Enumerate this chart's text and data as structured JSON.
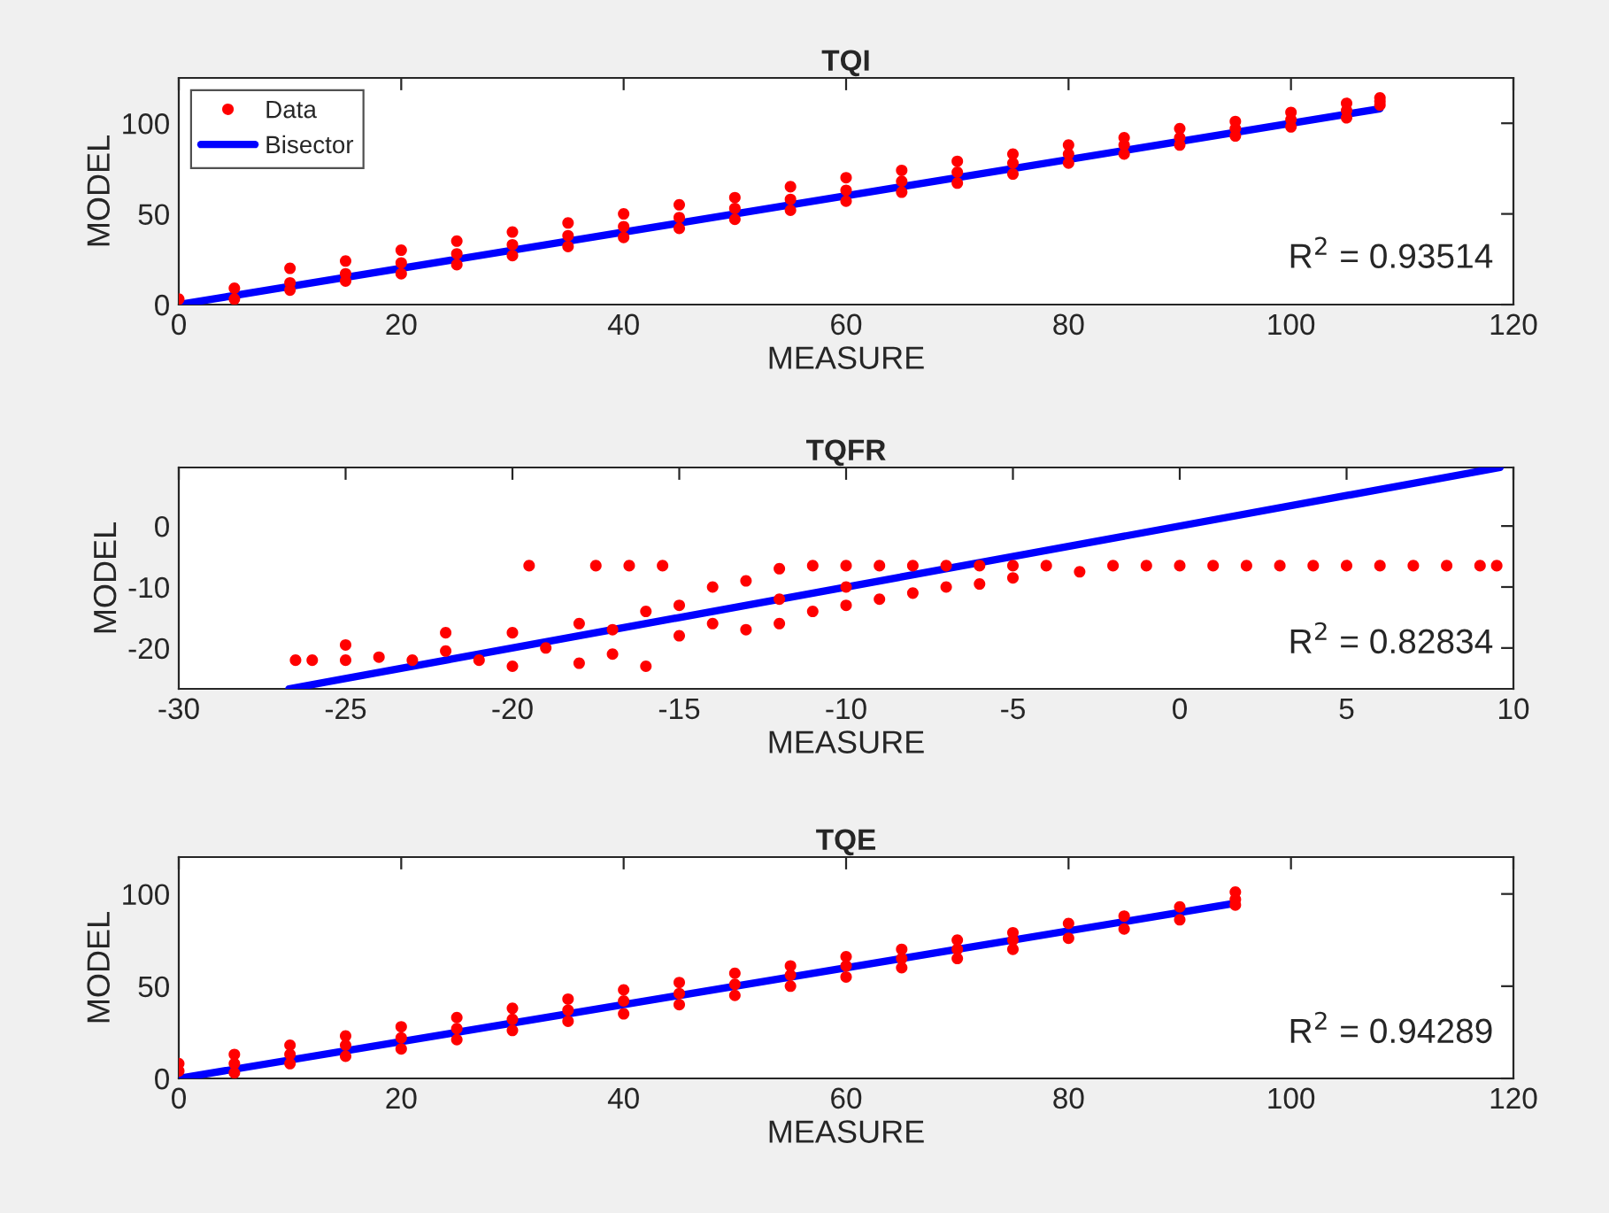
{
  "chart_data": [
    {
      "type": "scatter",
      "title": "TQI",
      "xlabel": "MEASURE",
      "ylabel": "MODEL",
      "xlim": [
        0,
        120
      ],
      "ylim": [
        0,
        125
      ],
      "xticks": [
        0,
        20,
        40,
        60,
        80,
        100,
        120
      ],
      "yticks": [
        0,
        50,
        100
      ],
      "legend": "top left",
      "annotations": [
        "R$^{2}$ = 0.93514"
      ],
      "series": [
        {
          "name": "Data",
          "marker": "circle",
          "color": "#ff0000",
          "x": [
            0,
            5,
            10,
            15,
            20,
            25,
            30,
            35,
            40,
            45,
            50,
            55,
            60,
            65,
            70,
            75,
            80,
            85,
            90,
            95,
            100,
            105,
            108,
            10,
            15,
            20,
            25,
            30,
            35,
            40,
            45,
            50,
            55,
            60,
            65,
            70,
            75,
            80,
            85,
            90,
            95,
            100,
            105,
            108,
            5,
            10,
            15,
            20,
            25,
            30,
            35,
            40,
            45,
            50,
            55,
            60,
            65,
            70,
            75,
            80,
            85,
            90,
            95,
            100,
            105,
            108
          ],
          "values": [
            3,
            9,
            20,
            24,
            30,
            35,
            40,
            45,
            50,
            55,
            59,
            65,
            70,
            74,
            79,
            83,
            88,
            92,
            97,
            101,
            106,
            111,
            114,
            12,
            17,
            23,
            28,
            33,
            38,
            43,
            48,
            53,
            58,
            63,
            68,
            73,
            78,
            83,
            88,
            92,
            97,
            102,
            107,
            112,
            3,
            8,
            13,
            17,
            22,
            27,
            32,
            37,
            42,
            47,
            52,
            57,
            62,
            67,
            72,
            78,
            83,
            88,
            93,
            98,
            103,
            110
          ]
        },
        {
          "name": "Bisector",
          "type": "line",
          "marker": "none",
          "color": "#0000ff",
          "x": [
            0,
            108
          ],
          "values": [
            0,
            108
          ]
        }
      ]
    },
    {
      "type": "scatter",
      "title": "TQFR",
      "xlabel": "MEASURE",
      "ylabel": "MODEL",
      "xlim": [
        -30,
        10
      ],
      "ylim": [
        -26.7,
        9.6
      ],
      "xticks": [
        -30,
        -25,
        -20,
        -15,
        -10,
        -5,
        0,
        5,
        10
      ],
      "yticks": [
        -20,
        -10,
        0
      ],
      "annotations": [
        "R$^{2}$ = 0.82834"
      ],
      "series": [
        {
          "marker": "circle",
          "color": "#ff0000",
          "x": [
            -26.5,
            -26,
            -25,
            -25,
            -24,
            -23,
            -22,
            -22,
            -21,
            -20,
            -20,
            -19.5,
            -19,
            -18,
            -18,
            -17.5,
            -17,
            -17,
            -16.5,
            -16,
            -16,
            -15.5,
            -15,
            -15,
            -14,
            -14,
            -13,
            -13,
            -12,
            -12,
            -12,
            -11,
            -11,
            -10,
            -10,
            -10,
            -9,
            -9,
            -8,
            -8,
            -7,
            -7,
            -6,
            -6,
            -5,
            -5,
            -4,
            -3,
            -2,
            -1,
            0,
            1,
            2,
            3,
            4,
            5,
            6,
            7,
            8,
            9,
            9.5
          ],
          "values": [
            -22,
            -22,
            -22,
            -19.5,
            -21.5,
            -22,
            -20.5,
            -17.5,
            -22,
            -17.5,
            -23,
            -6.5,
            -20,
            -16,
            -22.5,
            -6.5,
            -17,
            -21,
            -6.5,
            -14,
            -23,
            -6.5,
            -13,
            -18,
            -10,
            -16,
            -9,
            -17,
            -7,
            -12,
            -16,
            -6.5,
            -14,
            -6.5,
            -10,
            -13,
            -6.5,
            -12,
            -6.5,
            -11,
            -6.5,
            -10,
            -6.5,
            -9.5,
            -6.5,
            -8.5,
            -6.5,
            -7.5,
            -6.5,
            -6.5,
            -6.5,
            -6.5,
            -6.5,
            -6.5,
            -6.5,
            -6.5,
            -6.5,
            -6.5,
            -6.5,
            -6.5,
            -6.5
          ]
        },
        {
          "type": "line",
          "marker": "none",
          "color": "#0000ff",
          "x": [
            -26.7,
            9.6
          ],
          "values": [
            -26.7,
            9.6
          ]
        }
      ]
    },
    {
      "type": "scatter",
      "title": "TQE",
      "xlabel": "MEASURE",
      "ylabel": "MODEL",
      "xlim": [
        0,
        120
      ],
      "ylim": [
        0,
        120
      ],
      "xticks": [
        0,
        20,
        40,
        60,
        80,
        100,
        120
      ],
      "yticks": [
        0,
        50,
        100
      ],
      "annotations": [
        "R$^{2}$ = 0.94289"
      ],
      "series": [
        {
          "marker": "circle",
          "color": "#ff0000",
          "x": [
            0,
            5,
            10,
            15,
            20,
            25,
            30,
            35,
            40,
            45,
            50,
            55,
            60,
            65,
            70,
            75,
            80,
            85,
            90,
            95,
            0,
            5,
            10,
            15,
            20,
            25,
            30,
            35,
            40,
            45,
            50,
            55,
            60,
            65,
            70,
            75,
            95,
            5,
            10,
            15,
            20,
            25,
            30,
            35,
            40,
            45,
            50,
            55,
            60,
            65,
            70,
            75,
            80,
            85,
            90,
            95
          ],
          "values": [
            8,
            13,
            18,
            23,
            28,
            33,
            38,
            43,
            48,
            52,
            57,
            61,
            66,
            70,
            75,
            79,
            84,
            88,
            93,
            101,
            4,
            8,
            13,
            18,
            22,
            27,
            32,
            37,
            42,
            46,
            51,
            56,
            61,
            65,
            70,
            75,
            97,
            3,
            8,
            12,
            16,
            21,
            26,
            31,
            35,
            40,
            45,
            50,
            55,
            60,
            65,
            70,
            76,
            81,
            86,
            94
          ]
        },
        {
          "type": "line",
          "marker": "none",
          "color": "#0000ff",
          "x": [
            0,
            95
          ],
          "values": [
            0,
            95
          ]
        }
      ]
    }
  ]
}
